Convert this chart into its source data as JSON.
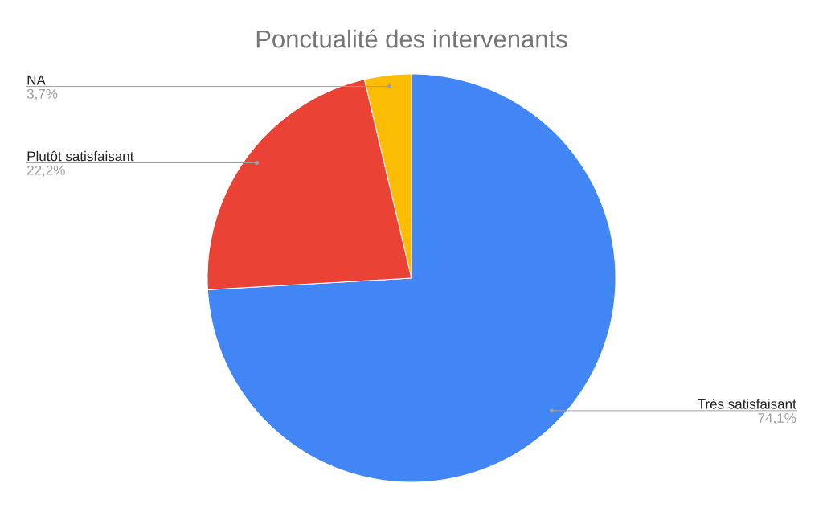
{
  "chart_data": {
    "type": "pie",
    "title": "Ponctualité des intervenants",
    "categories": [
      "Très satisfaisant",
      "Plutôt satisfaisant",
      "NA"
    ],
    "values": [
      74.1,
      22.2,
      3.7
    ],
    "colors": [
      "#4285f4",
      "#ea4335",
      "#fbbc04"
    ],
    "value_labels": [
      "74,1%",
      "22,2%",
      "3,7%"
    ]
  }
}
